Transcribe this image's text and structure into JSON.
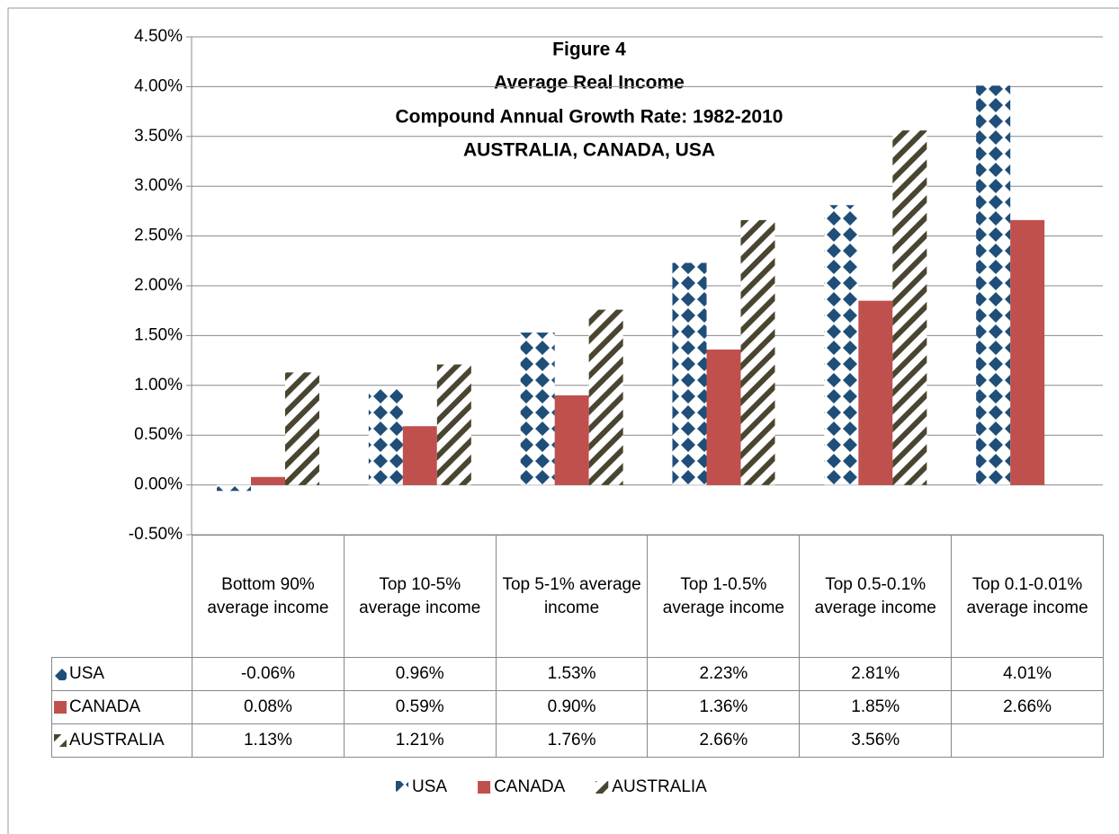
{
  "chart_data": {
    "type": "bar",
    "title": [
      "Figure 4",
      "Average Real Income",
      "Compound  Annual Growth Rate: 1982-2010",
      "AUSTRALIA, CANADA, USA"
    ],
    "categories": [
      "Bottom 90% average income",
      "Top 10-5% average income",
      "Top 5-1% average income",
      "Top 1-0.5% average income",
      "Top 0.5-0.1% average income",
      "Top 0.1-0.01% average income"
    ],
    "series": [
      {
        "name": "USA",
        "color": "#1f4e79",
        "pattern": "diamonds",
        "values": [
          -0.06,
          0.96,
          1.53,
          2.23,
          2.81,
          4.01
        ],
        "value_labels": [
          "-0.06%",
          "0.96%",
          "1.53%",
          "2.23%",
          "2.81%",
          "4.01%"
        ]
      },
      {
        "name": "CANADA",
        "color": "#c0504d",
        "pattern": "solid",
        "values": [
          0.08,
          0.59,
          0.9,
          1.36,
          1.85,
          2.66
        ],
        "value_labels": [
          "0.08%",
          "0.59%",
          "0.90%",
          "1.36%",
          "1.85%",
          "2.66%"
        ]
      },
      {
        "name": "AUSTRALIA",
        "color": "#4a4530",
        "pattern": "stripes",
        "values": [
          1.13,
          1.21,
          1.76,
          2.66,
          3.56,
          null
        ],
        "value_labels": [
          "1.13%",
          "1.21%",
          "1.76%",
          "2.66%",
          "3.56%",
          null
        ]
      }
    ],
    "ylim": [
      -0.5,
      4.5
    ],
    "yticks": [
      {
        "value": -0.5,
        "label": "-0.50%"
      },
      {
        "value": 0,
        "label": "0.00%"
      },
      {
        "value": 0.5,
        "label": "0.50%"
      },
      {
        "value": 1,
        "label": "1.00%"
      },
      {
        "value": 1.5,
        "label": "1.50%"
      },
      {
        "value": 2,
        "label": "2.00%"
      },
      {
        "value": 2.5,
        "label": "2.50%"
      },
      {
        "value": 3,
        "label": "3.00%"
      },
      {
        "value": 3.5,
        "label": "3.50%"
      },
      {
        "value": 4,
        "label": "4.00%"
      },
      {
        "value": 4.5,
        "label": "4.50%"
      }
    ],
    "grid": true,
    "legend": "bottom"
  }
}
